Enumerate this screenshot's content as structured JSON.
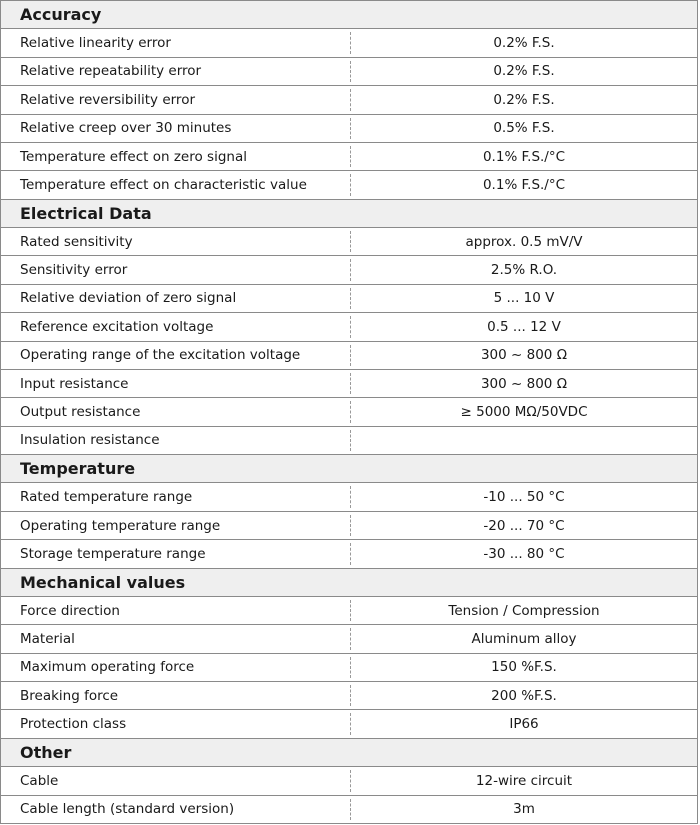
{
  "sections": [
    {
      "title": "Accuracy",
      "rows": [
        {
          "label": "Relative linearity error",
          "value": "0.2% F.S."
        },
        {
          "label": "Relative repeatability error",
          "value": "0.2% F.S."
        },
        {
          "label": "Relative reversibility error",
          "value": "0.2% F.S."
        },
        {
          "label": "Relative creep over 30 minutes",
          "value": "0.5% F.S."
        },
        {
          "label": "Temperature effect on zero signal",
          "value": "0.1% F.S./°C"
        },
        {
          "label": "Temperature effect on characteristic value",
          "value": "0.1% F.S./°C"
        }
      ]
    },
    {
      "title": "Electrical Data",
      "rows": [
        {
          "label": "Rated sensitivity",
          "value": "approx. 0.5 mV/V"
        },
        {
          "label": "Sensitivity error",
          "value": "2.5% R.O."
        },
        {
          "label": "Relative deviation of zero signal",
          "value": "5 ... 10 V"
        },
        {
          "label": "Reference excitation voltage",
          "value": "0.5 ... 12 V"
        },
        {
          "label": "Operating range of the excitation voltage",
          "value": "300 ~ 800 Ω"
        },
        {
          "label": "Input resistance",
          "value": "300 ~ 800 Ω"
        },
        {
          "label": "Output resistance",
          "value": "≥ 5000 MΩ/50VDC"
        },
        {
          "label": "Insulation resistance",
          "value": ""
        }
      ]
    },
    {
      "title": "Temperature",
      "rows": [
        {
          "label": "Rated temperature range",
          "value": "-10 ... 50 °C"
        },
        {
          "label": "Operating temperature range",
          "value": "-20 ... 70 °C"
        },
        {
          "label": "Storage temperature range",
          "value": "-30 ... 80 °C"
        }
      ]
    },
    {
      "title": "Mechanical values",
      "rows": [
        {
          "label": "Force direction",
          "value": "Tension / Compression"
        },
        {
          "label": "Material",
          "value": "Aluminum alloy"
        },
        {
          "label": "Maximum operating force",
          "value": "150 %F.S."
        },
        {
          "label": "Breaking force",
          "value": "200 %F.S."
        },
        {
          "label": "Protection class",
          "value": "IP66"
        }
      ]
    },
    {
      "title": "Other",
      "rows": [
        {
          "label": "Cable",
          "value": "12-wire circuit"
        },
        {
          "label": "Cable length (standard version)",
          "value": "3m"
        }
      ]
    }
  ]
}
